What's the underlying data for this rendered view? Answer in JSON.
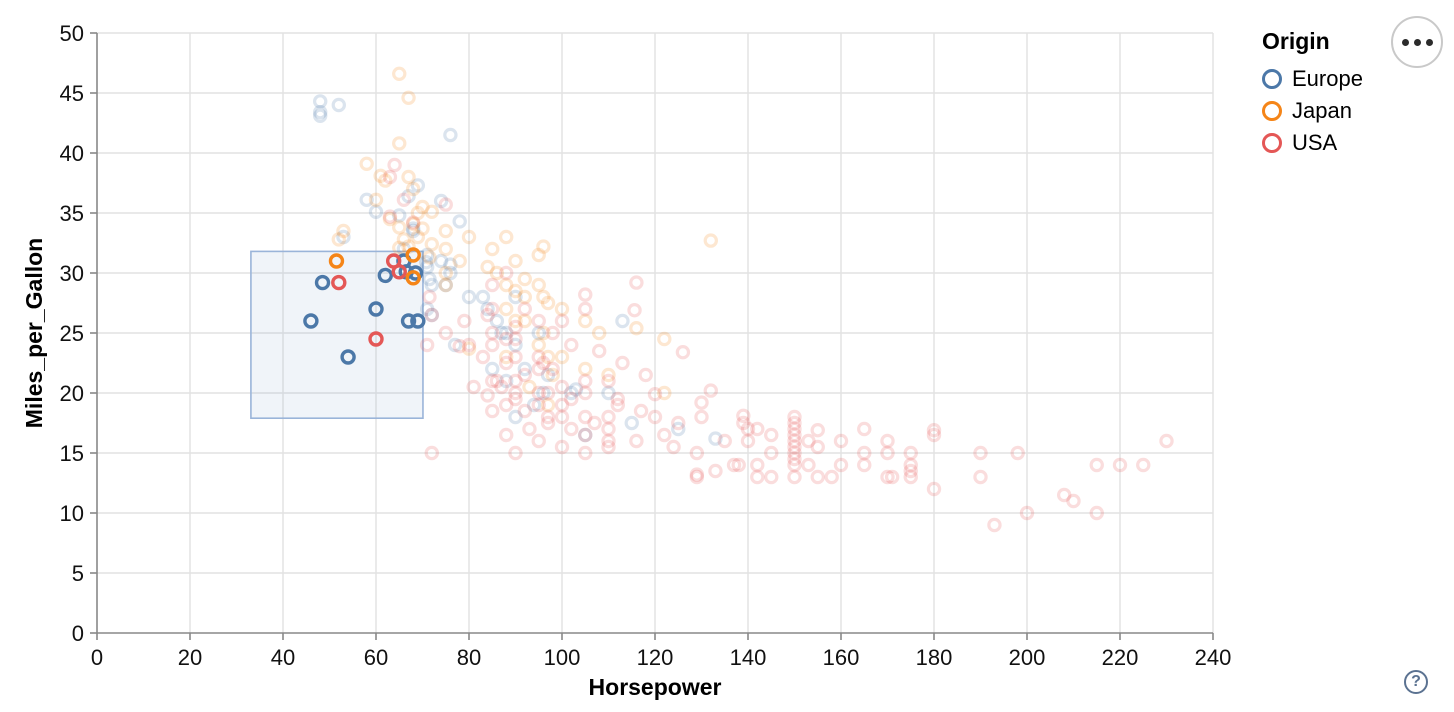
{
  "controls": {
    "menu_button": {
      "icon": "ellipsis-icon"
    },
    "help_button": {
      "icon": "question-mark-icon",
      "label": "?"
    }
  },
  "chart_data": {
    "type": "scatter",
    "title": "",
    "xlabel": "Horsepower",
    "ylabel": "Miles_per_Gallon",
    "xlim": [
      0,
      240
    ],
    "ylim": [
      0,
      50
    ],
    "xticks": [
      0,
      20,
      40,
      60,
      80,
      100,
      120,
      140,
      160,
      180,
      200,
      220,
      240
    ],
    "yticks": [
      0,
      5,
      10,
      15,
      20,
      25,
      30,
      35,
      40,
      45,
      50
    ],
    "grid": true,
    "legend_position": "top-right",
    "legend": {
      "title": "Origin",
      "entries": [
        {
          "label": "Europe",
          "color": "#4c78a8"
        },
        {
          "label": "Japan",
          "color": "#f58518"
        },
        {
          "label": "USA",
          "color": "#e45756"
        }
      ]
    },
    "brush": {
      "x": [
        33.1,
        70.1
      ],
      "y": [
        17.9,
        31.8
      ],
      "fill": "#6e96c8",
      "fill_opacity": 0.1,
      "stroke": "#9ab4d9"
    },
    "unselected_opacity": 0.2,
    "series": [
      {
        "name": "Europe",
        "color": "#4c78a8",
        "selected": [
          [
            46,
            26
          ],
          [
            48.5,
            29.2
          ],
          [
            54,
            23
          ],
          [
            60,
            27
          ],
          [
            62,
            29.8
          ],
          [
            66,
            31
          ],
          [
            66.5,
            30.1
          ],
          [
            68.5,
            30
          ],
          [
            67,
            26
          ],
          [
            69,
            26
          ]
        ],
        "points": [
          [
            48,
            43.4
          ],
          [
            48,
            44.3
          ],
          [
            48,
            43.1
          ],
          [
            52,
            44
          ],
          [
            76,
            41.5
          ],
          [
            67,
            36.4
          ],
          [
            69,
            37.3
          ],
          [
            58,
            36.1
          ],
          [
            71,
            31.5
          ],
          [
            78,
            34.3
          ],
          [
            76,
            30.7
          ],
          [
            74,
            36
          ],
          [
            60,
            35.1
          ],
          [
            68,
            33.5
          ],
          [
            65,
            34.8
          ],
          [
            87,
            25
          ],
          [
            90,
            24
          ],
          [
            95,
            25
          ],
          [
            113,
            26
          ],
          [
            76,
            30
          ],
          [
            71,
            27
          ],
          [
            102,
            20
          ],
          [
            125,
            17
          ],
          [
            103,
            20.3
          ],
          [
            133,
            16.2
          ],
          [
            88,
            25
          ],
          [
            75,
            29
          ],
          [
            90,
            28
          ],
          [
            66,
            32
          ],
          [
            72,
            26.5
          ],
          [
            84,
            27
          ],
          [
            72,
            29
          ],
          [
            53,
            33
          ],
          [
            77,
            24
          ],
          [
            96,
            20
          ],
          [
            85,
            22
          ],
          [
            80,
            28
          ],
          [
            88,
            21
          ],
          [
            94,
            19
          ],
          [
            90,
            18
          ],
          [
            105,
            16.5
          ],
          [
            86,
            26
          ],
          [
            92,
            22
          ],
          [
            68,
            33.7
          ],
          [
            74,
            31
          ],
          [
            71.5,
            29.5
          ],
          [
            71,
            30.5
          ],
          [
            70.8,
            30.9
          ],
          [
            110,
            20
          ],
          [
            115,
            17.5
          ],
          [
            97,
            21.5
          ],
          [
            83,
            28
          ]
        ]
      },
      {
        "name": "Japan",
        "color": "#f58518",
        "selected": [
          [
            51.5,
            31
          ],
          [
            68,
            31.5
          ],
          [
            68,
            29.6
          ]
        ],
        "points": [
          [
            95,
            24
          ],
          [
            88,
            27
          ],
          [
            69,
            35
          ],
          [
            92,
            28
          ],
          [
            97,
            19
          ],
          [
            80,
            23.7
          ],
          [
            110,
            21.5
          ],
          [
            75,
            29
          ],
          [
            65,
            32.1
          ],
          [
            71.5,
            31.3
          ],
          [
            52,
            32.8
          ],
          [
            65,
            46.6
          ],
          [
            67,
            44.6
          ],
          [
            132,
            32.7
          ],
          [
            96,
            25
          ],
          [
            90,
            26
          ],
          [
            75,
            30
          ],
          [
            88,
            23
          ],
          [
            97,
            23
          ],
          [
            95,
            29
          ],
          [
            75,
            33.5
          ],
          [
            72,
            35.1
          ],
          [
            60,
            36.1
          ],
          [
            58,
            39.1
          ],
          [
            65,
            40.8
          ],
          [
            61,
            38.1
          ],
          [
            67,
            38
          ],
          [
            62,
            37.7
          ],
          [
            68,
            37
          ],
          [
            68,
            34.1
          ],
          [
            65,
            33.8
          ],
          [
            63,
            34.5
          ],
          [
            70,
            35.5
          ],
          [
            69,
            33
          ],
          [
            66,
            32.8
          ],
          [
            53,
            33.5
          ],
          [
            88,
            29
          ],
          [
            85,
            32
          ],
          [
            90,
            31
          ],
          [
            92,
            29.5
          ],
          [
            96,
            28
          ],
          [
            100,
            27
          ],
          [
            105,
            26
          ],
          [
            108,
            25
          ],
          [
            95,
            31.5
          ],
          [
            88,
            33
          ],
          [
            75,
            32
          ],
          [
            70,
            33.7
          ],
          [
            67,
            32.2
          ],
          [
            72,
            32.4
          ],
          [
            96,
            32.2
          ],
          [
            116,
            25.4
          ],
          [
            122,
            24.5
          ],
          [
            97,
            27.5
          ],
          [
            90,
            28.5
          ],
          [
            86,
            30
          ],
          [
            78,
            31
          ],
          [
            80,
            33
          ],
          [
            84,
            30.5
          ],
          [
            92,
            26
          ],
          [
            100,
            23
          ],
          [
            105,
            22
          ],
          [
            122,
            20
          ],
          [
            93,
            20.5
          ],
          [
            98,
            21.5
          ]
        ]
      },
      {
        "name": "USA",
        "color": "#e45756",
        "selected": [
          [
            52,
            29.2
          ],
          [
            60,
            24.5
          ],
          [
            63.8,
            31
          ],
          [
            65,
            30.1
          ]
        ],
        "points": [
          [
            130,
            18
          ],
          [
            165,
            15
          ],
          [
            150,
            18
          ],
          [
            150,
            16
          ],
          [
            140,
            17
          ],
          [
            198,
            15
          ],
          [
            220,
            14
          ],
          [
            215,
            14
          ],
          [
            225,
            14
          ],
          [
            190,
            15
          ],
          [
            170,
            15
          ],
          [
            160,
            14
          ],
          [
            150,
            15
          ],
          [
            230,
            16
          ],
          [
            215,
            10
          ],
          [
            200,
            10
          ],
          [
            210,
            11
          ],
          [
            193,
            9
          ],
          [
            175,
            14
          ],
          [
            153,
            16
          ],
          [
            175,
            13
          ],
          [
            170,
            13
          ],
          [
            145,
            13
          ],
          [
            158,
            13
          ],
          [
            150,
            14
          ],
          [
            138,
            14
          ],
          [
            142,
            14
          ],
          [
            150,
            14.5
          ],
          [
            150,
            15.5
          ],
          [
            150,
            13
          ],
          [
            165,
            14
          ],
          [
            171,
            13
          ],
          [
            153,
            14
          ],
          [
            175,
            15
          ],
          [
            155,
            13
          ],
          [
            142,
            13
          ],
          [
            129,
            13
          ],
          [
            137,
            14
          ],
          [
            125,
            17.5
          ],
          [
            150,
            17.5
          ],
          [
            145,
            16.5
          ],
          [
            165,
            17
          ],
          [
            139,
            17.5
          ],
          [
            140,
            16
          ],
          [
            150,
            16.5
          ],
          [
            155,
            15.5
          ],
          [
            139,
            18.1
          ],
          [
            155,
            16.9
          ],
          [
            142,
            17
          ],
          [
            150,
            17
          ],
          [
            135,
            16
          ],
          [
            145,
            15
          ],
          [
            180,
            16.5
          ],
          [
            180,
            16.9
          ],
          [
            180,
            12
          ],
          [
            175,
            13.5
          ],
          [
            160,
            16
          ],
          [
            170,
            16
          ],
          [
            190,
            13
          ],
          [
            208,
            11.5
          ],
          [
            130,
            19.2
          ],
          [
            120,
            19.9
          ],
          [
            132,
            20.2
          ],
          [
            129,
            13.2
          ],
          [
            133,
            13.5
          ],
          [
            95,
            22
          ],
          [
            97,
            18
          ],
          [
            85,
            21
          ],
          [
            90,
            21
          ],
          [
            100,
            19
          ],
          [
            105,
            15
          ],
          [
            100,
            18
          ],
          [
            105,
            18
          ],
          [
            95,
            20
          ],
          [
            90,
            20
          ],
          [
            86,
            21
          ],
          [
            75,
            25
          ],
          [
            72,
            26.5
          ],
          [
            71.5,
            28
          ],
          [
            90,
            23
          ],
          [
            95,
            23
          ],
          [
            105,
            21
          ],
          [
            85,
            24
          ],
          [
            88,
            24.5
          ],
          [
            90,
            24.5
          ],
          [
            98,
            22
          ],
          [
            79,
            26
          ],
          [
            85,
            27
          ],
          [
            92,
            27
          ],
          [
            84,
            26.5
          ],
          [
            85,
            29
          ],
          [
            88,
            30
          ],
          [
            63,
            38
          ],
          [
            64,
            39
          ],
          [
            75,
            35.7
          ],
          [
            68,
            34.2
          ],
          [
            63,
            34.7
          ],
          [
            66,
            36.1
          ],
          [
            72,
            15
          ],
          [
            90,
            15
          ],
          [
            88,
            16.5
          ],
          [
            95,
            16
          ],
          [
            100,
            15.5
          ],
          [
            105,
            16.5
          ],
          [
            93,
            17
          ],
          [
            97,
            17.5
          ],
          [
            102,
            17
          ],
          [
            107,
            17.5
          ],
          [
            110,
            15.5
          ],
          [
            85,
            18.5
          ],
          [
            88,
            19
          ],
          [
            90,
            19.5
          ],
          [
            92,
            18.5
          ],
          [
            95,
            19
          ],
          [
            97,
            20
          ],
          [
            100,
            20.5
          ],
          [
            102,
            19.5
          ],
          [
            105,
            20
          ],
          [
            87,
            20.5
          ],
          [
            84,
            19.8
          ],
          [
            81,
            20.5
          ],
          [
            92,
            21.5
          ],
          [
            96,
            22.5
          ],
          [
            88,
            22.5
          ],
          [
            83,
            23
          ],
          [
            78,
            23.9
          ],
          [
            80,
            24
          ],
          [
            85,
            25
          ],
          [
            90,
            25.5
          ],
          [
            95,
            26
          ],
          [
            71,
            24
          ],
          [
            110,
            21
          ],
          [
            110,
            18
          ],
          [
            110,
            17
          ],
          [
            112,
            19
          ],
          [
            117,
            18.5
          ],
          [
            120,
            18
          ],
          [
            129,
            15
          ],
          [
            112,
            19.5
          ],
          [
            110,
            16
          ],
          [
            116,
            29.2
          ],
          [
            105,
            28.2
          ],
          [
            105,
            27
          ],
          [
            115.6,
            26.9
          ],
          [
            126,
            23.4
          ],
          [
            100,
            26
          ],
          [
            98,
            25
          ],
          [
            102,
            24
          ],
          [
            108,
            23.5
          ],
          [
            113,
            22.5
          ],
          [
            118,
            21.5
          ],
          [
            122,
            16.5
          ],
          [
            116,
            16
          ],
          [
            124,
            15.5
          ]
        ]
      }
    ]
  }
}
